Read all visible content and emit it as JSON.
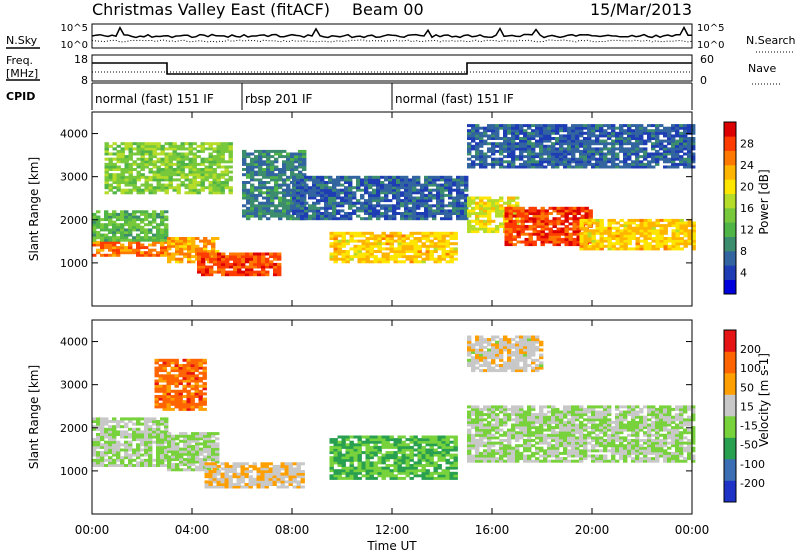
{
  "header": {
    "title": "Christmas Valley East (fitACF)",
    "beam": "Beam 00",
    "date": "15/Mar/2013"
  },
  "strip_labels": {
    "nsky": "N.Sky",
    "nsearch": "N.Search",
    "freq_line1": "Freq.",
    "freq_line2": "[MHz]",
    "nave": "Nave",
    "cpid": "CPID",
    "noise_ticks": [
      "10^5",
      "10^0"
    ],
    "freq_ticks": [
      "18",
      "8"
    ],
    "nave_ticks": [
      "60",
      "0"
    ]
  },
  "cpid_segments": [
    {
      "label": "normal (fast) 151 IF",
      "start_hour": 0,
      "end_hour": 6
    },
    {
      "label": "rbsp 201 IF",
      "start_hour": 6,
      "end_hour": 12
    },
    {
      "label": "normal (fast) 151 IF",
      "start_hour": 12,
      "end_hour": 24
    }
  ],
  "chart_data": [
    {
      "type": "heatmap",
      "panel": "power",
      "xlabel": "Time UT",
      "ylabel": "Slant Range [km]",
      "x_ticks": [
        "00:00",
        "04:00",
        "08:00",
        "12:00",
        "16:00",
        "20:00",
        "00:00"
      ],
      "xlim_hours": [
        0,
        24
      ],
      "ylim": [
        0,
        4500
      ],
      "y_ticks": [
        1000,
        2000,
        3000,
        4000
      ],
      "colorbar": {
        "label": "Power [dB]",
        "ticks": [
          "28",
          "24",
          "20",
          "16",
          "12",
          "8",
          "4"
        ],
        "colors": [
          "#0000dd",
          "#1e3cb4",
          "#3264a0",
          "#3c8c6e",
          "#50b446",
          "#78c83c",
          "#b4dc28",
          "#ffe600",
          "#ffb400",
          "#ff7800",
          "#ff3c00",
          "#dc0000"
        ],
        "range": [
          0,
          30
        ]
      },
      "echo_bands": [
        {
          "t0": 0.0,
          "t1": 3.0,
          "r0": 1150,
          "r1": 1500,
          "value": 24
        },
        {
          "t0": 0.0,
          "t1": 3.0,
          "r0": 1500,
          "r1": 2200,
          "value": 12
        },
        {
          "t0": 0.5,
          "t1": 5.5,
          "r0": 2600,
          "r1": 3800,
          "value": 14
        },
        {
          "t0": 3.0,
          "t1": 5.0,
          "r0": 1000,
          "r1": 1600,
          "value": 22
        },
        {
          "t0": 4.2,
          "t1": 7.5,
          "r0": 700,
          "r1": 1200,
          "value": 26
        },
        {
          "t0": 6.0,
          "t1": 8.5,
          "r0": 2000,
          "r1": 3600,
          "value": 8
        },
        {
          "t0": 9.5,
          "t1": 14.5,
          "r0": 1000,
          "r1": 1700,
          "value": 20
        },
        {
          "t0": 8.0,
          "t1": 15.0,
          "r0": 2000,
          "r1": 3000,
          "value": 6
        },
        {
          "t0": 15.0,
          "t1": 17.0,
          "r0": 1700,
          "r1": 2500,
          "value": 18
        },
        {
          "t0": 16.5,
          "t1": 20.0,
          "r0": 1400,
          "r1": 2300,
          "value": 26
        },
        {
          "t0": 19.5,
          "t1": 24.0,
          "r0": 1300,
          "r1": 2000,
          "value": 20
        },
        {
          "t0": 15.0,
          "t1": 24.0,
          "r0": 3200,
          "r1": 4200,
          "value": 6
        }
      ]
    },
    {
      "type": "heatmap",
      "panel": "velocity",
      "xlabel": "Time UT",
      "ylabel": "Slant Range [km]",
      "x_ticks": [
        "00:00",
        "04:00",
        "08:00",
        "12:00",
        "16:00",
        "20:00",
        "00:00"
      ],
      "xlim_hours": [
        0,
        24
      ],
      "ylim": [
        0,
        4500
      ],
      "y_ticks": [
        1000,
        2000,
        3000,
        4000
      ],
      "colorbar": {
        "label": "Velocity [m s-1]",
        "ticks": [
          "200",
          "100",
          "50",
          "15",
          "-15",
          "-50",
          "-100",
          "-200"
        ],
        "colors": [
          "#1e32c8",
          "#3c6eb4",
          "#28a050",
          "#78d23c",
          "#c8c8c8",
          "#ffa000",
          "#ff6400",
          "#e61414"
        ],
        "range": [
          -250,
          250
        ]
      },
      "echo_bands": [
        {
          "t0": 0.0,
          "t1": 3.0,
          "r0": 1100,
          "r1": 2200,
          "value": 0
        },
        {
          "t0": 3.0,
          "t1": 5.0,
          "r0": 1000,
          "r1": 1900,
          "value": 0
        },
        {
          "t0": 2.5,
          "t1": 4.5,
          "r0": 2400,
          "r1": 3600,
          "value": 150
        },
        {
          "t0": 4.5,
          "t1": 8.5,
          "r0": 600,
          "r1": 1200,
          "value": 60
        },
        {
          "t0": 9.5,
          "t1": 14.5,
          "r0": 800,
          "r1": 1800,
          "value": -60
        },
        {
          "t0": 15.0,
          "t1": 24.0,
          "r0": 1200,
          "r1": 2500,
          "value": 0
        },
        {
          "t0": 15.0,
          "t1": 18.0,
          "r0": 3300,
          "r1": 4100,
          "value": 40
        }
      ]
    }
  ]
}
